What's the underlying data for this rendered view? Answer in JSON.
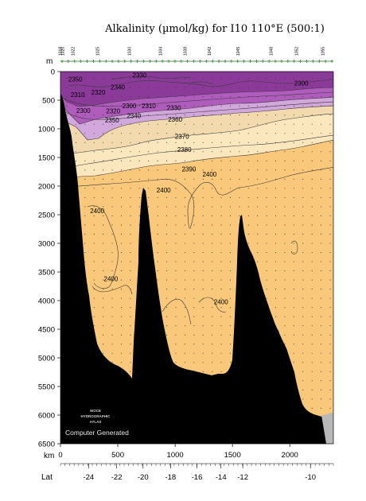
{
  "chart_data": {
    "type": "contour",
    "title": "Alkalinity (µmol/kg) for I10 110°E (500:1)",
    "y_unit": "m",
    "x_unit": "km",
    "lat_label": "Lat",
    "ylim": [
      6500,
      0
    ],
    "xlim": [
      0,
      2380
    ],
    "y_ticks": [
      0,
      500,
      1000,
      1500,
      2000,
      2500,
      3000,
      3500,
      4000,
      4500,
      5000,
      5500,
      6000,
      6500
    ],
    "x_ticks": [
      0,
      500,
      1000,
      1500,
      2000
    ],
    "lat_ticks": [
      {
        "km": 245,
        "label": "-24"
      },
      {
        "km": 490,
        "label": "-22"
      },
      {
        "km": 720,
        "label": "-20"
      },
      {
        "km": 960,
        "label": "-18"
      },
      {
        "km": 1190,
        "label": "-16"
      },
      {
        "km": 1400,
        "label": "-14"
      },
      {
        "km": 1590,
        "label": "-12"
      },
      {
        "km": 2180,
        "label": "-10"
      }
    ],
    "station_labels": [
      {
        "km": 10,
        "label": "1018"
      },
      {
        "km": 30,
        "label": "1020"
      },
      {
        "km": 120,
        "label": "1022"
      },
      {
        "km": 335,
        "label": "1025"
      },
      {
        "km": 615,
        "label": "1030"
      },
      {
        "km": 885,
        "label": "1034"
      },
      {
        "km": 1100,
        "label": "1038"
      },
      {
        "km": 1310,
        "label": "1042"
      },
      {
        "km": 1560,
        "label": "1045"
      },
      {
        "km": 1850,
        "label": "1048"
      },
      {
        "km": 2070,
        "label": "1052"
      },
      {
        "km": 2300,
        "label": "1055"
      }
    ],
    "contour_levels": [
      2300,
      2310,
      2320,
      2330,
      2340,
      2350,
      2360,
      2370,
      2380,
      2390,
      2400
    ],
    "contour_labels": [
      {
        "value": "2350",
        "km": 130,
        "depth": 130
      },
      {
        "value": "2330",
        "km": 690,
        "depth": 60
      },
      {
        "value": "2340",
        "km": 500,
        "depth": 270
      },
      {
        "value": "2310",
        "km": 150,
        "depth": 400
      },
      {
        "value": "2320",
        "km": 330,
        "depth": 360
      },
      {
        "value": "2300",
        "km": 2100,
        "depth": 200
      },
      {
        "value": "2300",
        "km": 200,
        "depth": 680
      },
      {
        "value": "2300",
        "km": 600,
        "depth": 600
      },
      {
        "value": "2310",
        "km": 770,
        "depth": 600
      },
      {
        "value": "2320",
        "km": 460,
        "depth": 690
      },
      {
        "value": "2330",
        "km": 990,
        "depth": 630
      },
      {
        "value": "2350",
        "km": 450,
        "depth": 850
      },
      {
        "value": "2340",
        "km": 640,
        "depth": 770
      },
      {
        "value": "2360",
        "km": 1000,
        "depth": 830
      },
      {
        "value": "2370",
        "km": 1060,
        "depth": 1130
      },
      {
        "value": "2380",
        "km": 1080,
        "depth": 1360
      },
      {
        "value": "2390",
        "km": 1120,
        "depth": 1700
      },
      {
        "value": "2400",
        "km": 1300,
        "depth": 1790
      },
      {
        "value": "2400",
        "km": 900,
        "depth": 2070
      },
      {
        "value": "2400",
        "km": 320,
        "depth": 2430
      },
      {
        "value": "2400",
        "km": 440,
        "depth": 3620
      },
      {
        "value": "2400",
        "km": 1400,
        "depth": 4020
      }
    ],
    "colors": {
      "lt_2320": "#8c3a9a",
      "2320_2340": "#b05cbd",
      "2340_2360": "#d2a8dc",
      "2360_2370": "#f2d9ae",
      "2370_2390": "#fbe7be",
      "gt_2390": "#f9c87a",
      "bottom": "#000000"
    },
    "watermark": [
      "WOCE",
      "HYDROGRAPHIC",
      "ATLAS"
    ],
    "credit": "Computer Generated"
  }
}
